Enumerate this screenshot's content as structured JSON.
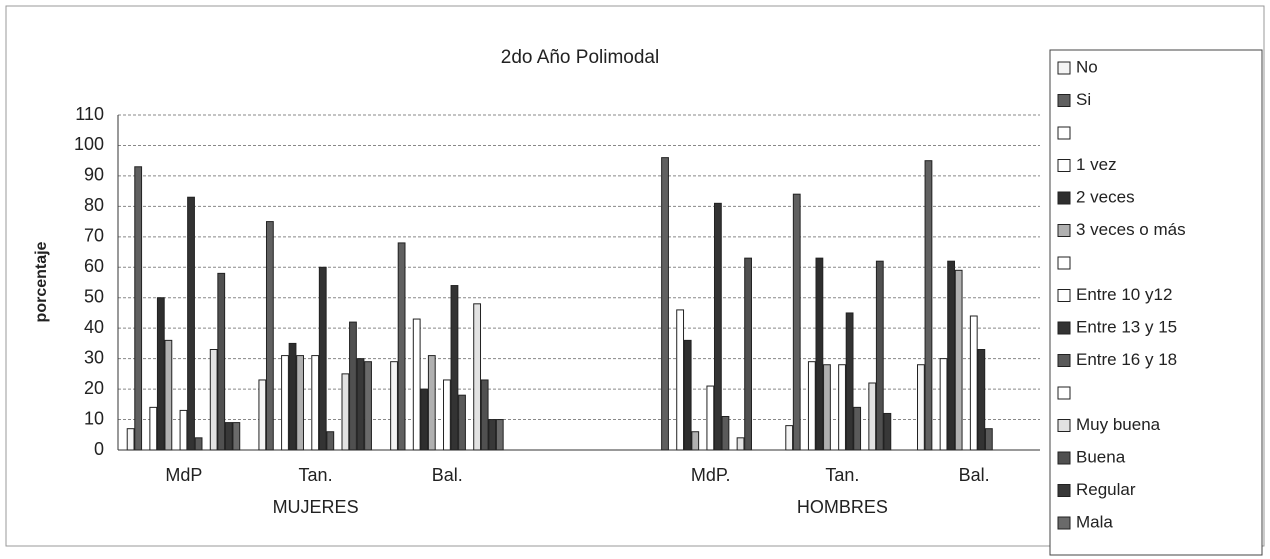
{
  "chart_data": {
    "type": "bar",
    "title": "2do Año Polimodal",
    "y_label": "porcentaje",
    "categories": [
      "MdP",
      "Tan.",
      "Bal.",
      null,
      "MdP.",
      "Tan.",
      "Bal."
    ],
    "group_labels": [
      "MUJERES",
      "HOMBRES"
    ],
    "ylim": [
      0,
      110
    ],
    "yticks": [
      0,
      10,
      20,
      30,
      40,
      50,
      60,
      70,
      80,
      90,
      100,
      110
    ],
    "grid": true,
    "legend": "right",
    "series": [
      {
        "name": "No",
        "color": "#f4f4f4",
        "values": [
          7,
          23,
          29,
          null,
          0,
          8,
          28
        ]
      },
      {
        "name": "Si",
        "color": "#606060",
        "values": [
          93,
          75,
          68,
          null,
          96,
          84,
          95
        ]
      },
      {
        "name": "1 vez",
        "color": "#ffffff",
        "values": [
          14,
          31,
          43,
          null,
          46,
          29,
          30
        ]
      },
      {
        "name": "2 veces",
        "color": "#2e2e2e",
        "values": [
          50,
          35,
          20,
          null,
          36,
          63,
          62
        ]
      },
      {
        "name": "3 veces o más",
        "color": "#b0b0b0",
        "values": [
          36,
          31,
          31,
          null,
          6,
          28,
          59
        ]
      },
      {
        "name": "Entre 10 y12",
        "color": "#ffffff",
        "values": [
          13,
          31,
          23,
          null,
          21,
          28,
          44
        ]
      },
      {
        "name": "Entre 13 y 15",
        "color": "#333333",
        "values": [
          83,
          60,
          54,
          null,
          81,
          45,
          33
        ]
      },
      {
        "name": "Entre 16 y 18",
        "color": "#5a5a5a",
        "values": [
          4,
          6,
          18,
          null,
          11,
          14,
          7
        ]
      },
      {
        "name": "Muy buena",
        "color": "#e2e2e2",
        "values": [
          33,
          25,
          48,
          null,
          4,
          22,
          0
        ]
      },
      {
        "name": "Buena",
        "color": "#505050",
        "values": [
          58,
          42,
          23,
          null,
          63,
          62,
          0
        ]
      },
      {
        "name": "Regular",
        "color": "#383838",
        "values": [
          9,
          30,
          10,
          null,
          0,
          12,
          0
        ]
      },
      {
        "name": "Mala",
        "color": "#6a6a6a",
        "values": [
          9,
          29,
          10,
          null,
          0,
          0,
          0
        ]
      }
    ]
  }
}
